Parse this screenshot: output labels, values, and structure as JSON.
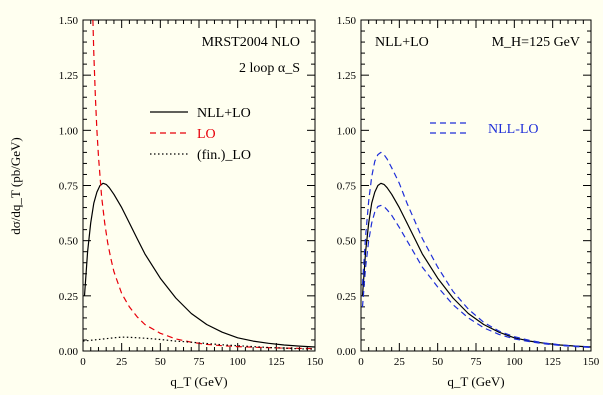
{
  "chart_data": [
    {
      "type": "line",
      "panel": "left",
      "xlabel": "q_T (GeV)",
      "ylabel": "dσ/dq_T (pb/GeV)",
      "xlim": [
        0,
        150
      ],
      "ylim": [
        0,
        1.5
      ],
      "xticks": [
        "0",
        "25",
        "50",
        "75",
        "100",
        "125",
        "150"
      ],
      "yticks": [
        "0.00",
        "0.25",
        "0.50",
        "0.75",
        "1.00",
        "1.25",
        "1.50"
      ],
      "annotations": [
        "MRST2004 NLO",
        "2 loop α_S"
      ],
      "legend_position": "middle-right",
      "series": [
        {
          "name": "NLL+LO",
          "style": "solid",
          "color": "#000000",
          "x": [
            1,
            3,
            5,
            7,
            9,
            11,
            13,
            15,
            17,
            20,
            25,
            30,
            35,
            40,
            50,
            60,
            70,
            80,
            90,
            100,
            110,
            120,
            130,
            140,
            150
          ],
          "y": [
            0.25,
            0.45,
            0.58,
            0.67,
            0.72,
            0.75,
            0.76,
            0.755,
            0.74,
            0.71,
            0.65,
            0.58,
            0.51,
            0.44,
            0.33,
            0.24,
            0.17,
            0.12,
            0.085,
            0.06,
            0.045,
            0.035,
            0.027,
            0.022,
            0.018
          ]
        },
        {
          "name": "LO",
          "style": "dashed",
          "color": "#e8000b",
          "x": [
            6.4,
            7,
            8,
            9,
            10,
            12,
            14,
            16,
            18,
            20,
            25,
            30,
            35,
            40,
            50,
            60,
            70,
            80,
            90,
            100,
            110,
            120,
            130,
            140,
            150
          ],
          "y": [
            1.5,
            1.35,
            1.15,
            1.0,
            0.88,
            0.7,
            0.58,
            0.49,
            0.42,
            0.36,
            0.26,
            0.2,
            0.155,
            0.12,
            0.08,
            0.055,
            0.04,
            0.03,
            0.024,
            0.02,
            0.017,
            0.015,
            0.013,
            0.012,
            0.011
          ]
        },
        {
          "name": "(fin.)_LO",
          "style": "dotted",
          "color": "#000000",
          "x": [
            0,
            10,
            20,
            25,
            30,
            40,
            50,
            60,
            70,
            80,
            90,
            100,
            110,
            120,
            130,
            140,
            150
          ],
          "y": [
            0.045,
            0.052,
            0.06,
            0.063,
            0.062,
            0.058,
            0.052,
            0.045,
            0.04,
            0.034,
            0.028,
            0.024,
            0.02,
            0.016,
            0.013,
            0.01,
            0.008
          ]
        }
      ]
    },
    {
      "type": "line",
      "panel": "right",
      "xlabel": "q_T (GeV)",
      "ylabel": "",
      "xlim": [
        0,
        150
      ],
      "ylim": [
        0,
        1.5
      ],
      "xticks": [
        "0",
        "25",
        "50",
        "75",
        "100",
        "125",
        "150"
      ],
      "yticks": [
        "0.00",
        "0.25",
        "0.50",
        "0.75",
        "1.00",
        "1.25",
        "1.50"
      ],
      "annotations": [
        "NLL+LO",
        "M_H=125 GeV"
      ],
      "legend_position": "upper-middle",
      "series": [
        {
          "name": "",
          "style": "solid",
          "color": "#000000",
          "x": [
            1,
            3,
            5,
            7,
            9,
            11,
            13,
            15,
            17,
            20,
            25,
            30,
            35,
            40,
            50,
            60,
            70,
            80,
            90,
            100,
            110,
            120,
            130,
            140,
            150
          ],
          "y": [
            0.25,
            0.45,
            0.58,
            0.67,
            0.72,
            0.75,
            0.76,
            0.755,
            0.74,
            0.71,
            0.65,
            0.58,
            0.51,
            0.44,
            0.33,
            0.24,
            0.17,
            0.12,
            0.085,
            0.06,
            0.045,
            0.035,
            0.027,
            0.022,
            0.018
          ]
        },
        {
          "name": "NLL-LO",
          "style": "dashed",
          "color": "#1f2fd8",
          "x": [
            1,
            3,
            5,
            7,
            9,
            11,
            13,
            15,
            17,
            20,
            25,
            30,
            35,
            40,
            50,
            60,
            70,
            80,
            90,
            100,
            110,
            120,
            130,
            140,
            150
          ],
          "y": [
            0.3,
            0.52,
            0.68,
            0.79,
            0.86,
            0.89,
            0.9,
            0.89,
            0.87,
            0.83,
            0.76,
            0.67,
            0.59,
            0.51,
            0.38,
            0.27,
            0.19,
            0.13,
            0.09,
            0.065,
            0.048,
            0.036,
            0.028,
            0.022,
            0.018
          ]
        },
        {
          "name": "",
          "style": "dashed",
          "color": "#1f2fd8",
          "x": [
            1,
            3,
            5,
            7,
            9,
            11,
            13,
            15,
            17,
            20,
            25,
            30,
            35,
            40,
            50,
            60,
            70,
            80,
            90,
            100,
            110,
            120,
            130,
            140,
            150
          ],
          "y": [
            0.2,
            0.38,
            0.5,
            0.58,
            0.63,
            0.655,
            0.66,
            0.655,
            0.64,
            0.615,
            0.56,
            0.5,
            0.44,
            0.38,
            0.29,
            0.21,
            0.15,
            0.105,
            0.075,
            0.055,
            0.042,
            0.032,
            0.025,
            0.02,
            0.016
          ]
        }
      ]
    }
  ]
}
